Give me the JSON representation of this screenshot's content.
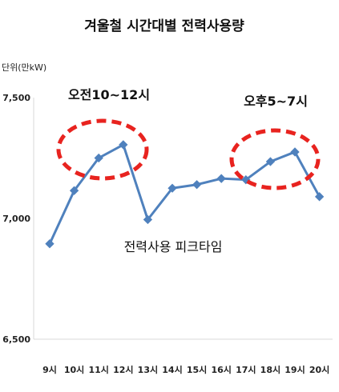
{
  "chart_data": {
    "type": "line",
    "title": "겨울철 시간대별 전력사용량",
    "unit_label": "단위(만kW)",
    "categories": [
      "9시",
      "10시",
      "11시",
      "12시",
      "13시",
      "14시",
      "15시",
      "16시",
      "17시",
      "18시",
      "19시",
      "20시"
    ],
    "series": [
      {
        "values": [
          6895,
          7115,
          7250,
          7305,
          6995,
          7125,
          7140,
          7165,
          7160,
          7235,
          7275,
          7090
        ],
        "color": "#4f81bd"
      }
    ],
    "ylim": [
      6500,
      7500
    ],
    "y_ticks": [
      6500,
      7000,
      7500
    ],
    "y_tick_labels": [
      "6,500",
      "7,000",
      "7,500"
    ],
    "grid": false,
    "annotations": {
      "morning_peak": "오전10~12시",
      "evening_peak": "오후5~7시",
      "peak_time": "전력사용 피크타임",
      "highlight_color": "#e8231f"
    }
  }
}
